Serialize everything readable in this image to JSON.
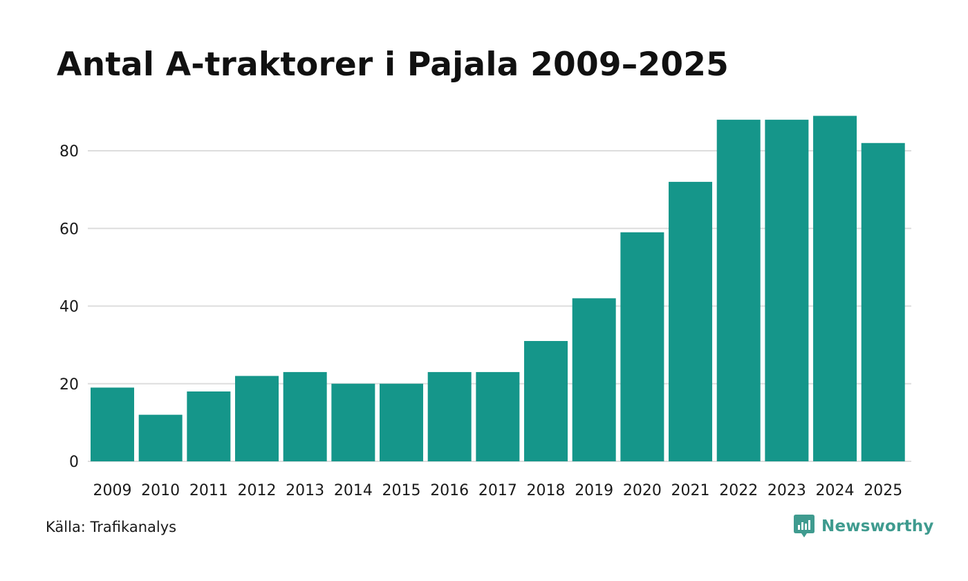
{
  "chart_data": {
    "type": "bar",
    "title": "Antal A-traktorer i Pajala 2009–2025",
    "categories": [
      "2009",
      "2010",
      "2011",
      "2012",
      "2013",
      "2014",
      "2015",
      "2016",
      "2017",
      "2018",
      "2019",
      "2020",
      "2021",
      "2022",
      "2023",
      "2024",
      "2025"
    ],
    "values": [
      19,
      12,
      18,
      22,
      23,
      20,
      20,
      23,
      23,
      31,
      42,
      59,
      72,
      88,
      88,
      89,
      82
    ],
    "xlabel": "",
    "ylabel": "",
    "ylim": [
      0,
      90
    ],
    "yticks": [
      0,
      20,
      40,
      60,
      80
    ],
    "grid": true,
    "bar_color": "#15968a",
    "grid_color": "#dddddd"
  },
  "footer": {
    "source": "Källa: Trafikanalys",
    "brand": "Newsworthy",
    "brand_icon": "newsworthy-logo-icon",
    "brand_color": "#3f9b8f"
  }
}
